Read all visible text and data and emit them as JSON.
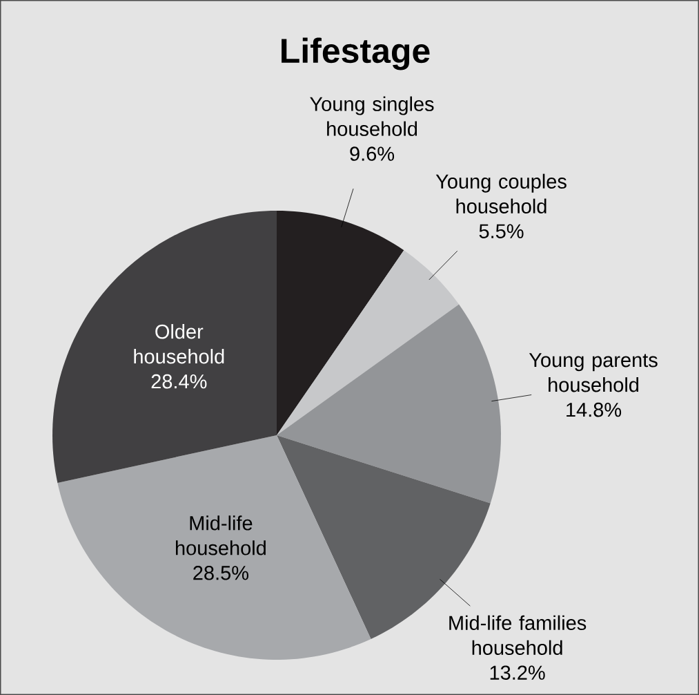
{
  "chart_data": {
    "type": "pie",
    "title": "Lifestage",
    "categories": [
      "Young singles household",
      "Young couples household",
      "Young parents household",
      "Mid-life families household",
      "Mid-life household",
      "Older household"
    ],
    "values": [
      9.6,
      5.5,
      14.8,
      13.2,
      28.5,
      28.4
    ],
    "value_labels": [
      "9.6%",
      "5.5%",
      "14.8%",
      "13.2%",
      "28.5%",
      "28.4%"
    ],
    "colors": [
      "#231f20",
      "#c7c8ca",
      "#939598",
      "#616264",
      "#a7a9ac",
      "#414042"
    ]
  }
}
